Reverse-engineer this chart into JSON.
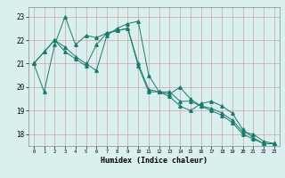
{
  "xlabel": "Humidex (Indice chaleur)",
  "background_color": "#d9f0ee",
  "grid_color": "#c8e8e4",
  "line_color": "#1a7a6e",
  "xlim": [
    -0.5,
    23.5
  ],
  "ylim": [
    17.5,
    23.4
  ],
  "yticks": [
    18,
    19,
    20,
    21,
    22,
    23
  ],
  "xticks": [
    0,
    1,
    2,
    3,
    4,
    5,
    6,
    7,
    8,
    9,
    10,
    11,
    12,
    13,
    14,
    15,
    16,
    17,
    18,
    19,
    20,
    21,
    22,
    23
  ],
  "series": [
    [
      21.0,
      19.8,
      21.8,
      23.0,
      21.8,
      22.2,
      22.1,
      22.3,
      22.4,
      22.5,
      20.9,
      19.8,
      19.8,
      19.8,
      19.4,
      19.4,
      19.2,
      19.0,
      18.8,
      18.5,
      18.0,
      17.8,
      17.6,
      17.6
    ],
    [
      21.0,
      21.5,
      22.0,
      21.7,
      21.3,
      21.0,
      20.7,
      22.2,
      22.5,
      22.7,
      22.8,
      20.5,
      19.8,
      19.6,
      19.2,
      19.0,
      19.3,
      19.4,
      19.2,
      18.9,
      18.2,
      17.85,
      17.6,
      17.6
    ],
    [
      21.0,
      21.5,
      22.0,
      21.5,
      21.2,
      20.9,
      21.8,
      22.3,
      22.4,
      22.5,
      21.0,
      19.9,
      19.8,
      19.7,
      20.0,
      19.5,
      19.2,
      19.1,
      18.9,
      18.6,
      18.1,
      18.0,
      17.7,
      17.6
    ]
  ]
}
